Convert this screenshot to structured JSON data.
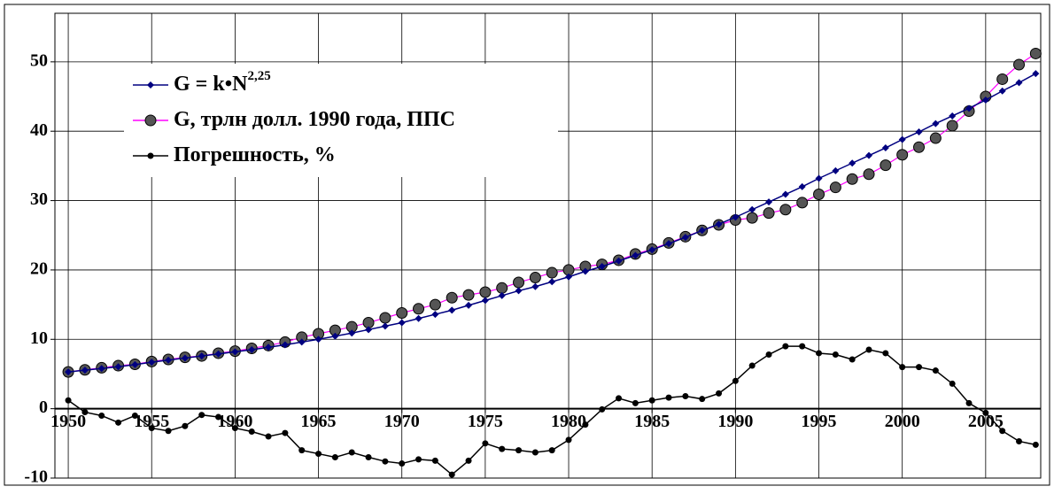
{
  "chart_data": {
    "type": "line",
    "x": [
      1950,
      1951,
      1952,
      1953,
      1954,
      1955,
      1956,
      1957,
      1958,
      1959,
      1960,
      1961,
      1962,
      1963,
      1964,
      1965,
      1966,
      1967,
      1968,
      1969,
      1970,
      1971,
      1972,
      1973,
      1974,
      1975,
      1976,
      1977,
      1978,
      1979,
      1980,
      1981,
      1982,
      1983,
      1984,
      1985,
      1986,
      1987,
      1988,
      1989,
      1990,
      1991,
      1992,
      1993,
      1994,
      1995,
      1996,
      1997,
      1998,
      1999,
      2000,
      2001,
      2002,
      2003,
      2004,
      2005,
      2006,
      2007,
      2008
    ],
    "series": [
      {
        "name": "G = k•N",
        "name_superscript": "2,25",
        "color": "#000080",
        "marker": "diamond",
        "values": [
          5.3,
          5.55,
          5.8,
          6.05,
          6.35,
          6.7,
          7.0,
          7.3,
          7.6,
          7.9,
          8.2,
          8.5,
          8.85,
          9.2,
          9.6,
          10.0,
          10.45,
          10.9,
          11.4,
          11.9,
          12.4,
          13.0,
          13.6,
          14.2,
          14.9,
          15.6,
          16.3,
          17.0,
          17.6,
          18.3,
          19.0,
          19.8,
          20.5,
          21.3,
          22.1,
          22.9,
          23.8,
          24.7,
          25.7,
          26.6,
          27.6,
          28.7,
          29.8,
          30.9,
          32.0,
          33.2,
          34.3,
          35.4,
          36.5,
          37.6,
          38.8,
          39.9,
          41.1,
          42.2,
          43.3,
          44.5,
          45.8,
          47.0,
          48.3
        ]
      },
      {
        "name": "G, трлн долл. 1990 года, ППС",
        "color": "#ff00ff",
        "marker_color": "#555555",
        "marker": "circle",
        "values": [
          5.3,
          5.6,
          5.9,
          6.2,
          6.4,
          6.8,
          7.1,
          7.4,
          7.6,
          8.0,
          8.3,
          8.7,
          9.1,
          9.6,
          10.3,
          10.8,
          11.3,
          11.8,
          12.4,
          13.1,
          13.8,
          14.4,
          15.0,
          16.0,
          16.4,
          16.8,
          17.4,
          18.2,
          18.9,
          19.6,
          20.0,
          20.5,
          20.8,
          21.4,
          22.3,
          23.0,
          23.9,
          24.8,
          25.7,
          26.5,
          27.2,
          27.5,
          28.2,
          28.7,
          29.7,
          30.9,
          31.9,
          33.1,
          33.8,
          35.1,
          36.6,
          37.7,
          39.0,
          40.8,
          42.9,
          45.0,
          47.5,
          49.6,
          51.2
        ]
      },
      {
        "name": "Погрешность, %",
        "color": "#000000",
        "marker": "dot",
        "values": [
          1.2,
          -0.5,
          -1.0,
          -2.0,
          -1.0,
          -2.8,
          -3.2,
          -2.5,
          -0.9,
          -1.2,
          -2.8,
          -3.3,
          -4.0,
          -3.5,
          -6.0,
          -6.5,
          -7.0,
          -6.3,
          -7.0,
          -7.6,
          -7.9,
          -7.3,
          -7.5,
          -9.5,
          -7.5,
          -5.0,
          -5.8,
          -6.0,
          -6.3,
          -6.0,
          -4.5,
          -2.3,
          -0.1,
          1.5,
          0.8,
          1.2,
          1.6,
          1.8,
          1.4,
          2.2,
          4.0,
          6.2,
          7.8,
          9.0,
          9.0,
          8.0,
          7.8,
          7.1,
          8.5,
          8.0,
          6.0,
          6.0,
          5.5,
          3.6,
          0.8,
          -0.6,
          -3.2,
          -4.7,
          -5.2
        ]
      }
    ],
    "xlim": [
      1949.2,
      2008.3
    ],
    "xticks": [
      1950,
      1955,
      1960,
      1965,
      1970,
      1975,
      1980,
      1985,
      1990,
      1995,
      2000,
      2005
    ],
    "ylim": [
      -10,
      57
    ],
    "yticks": [
      -10,
      0,
      10,
      20,
      30,
      40,
      50
    ],
    "grid": true
  }
}
